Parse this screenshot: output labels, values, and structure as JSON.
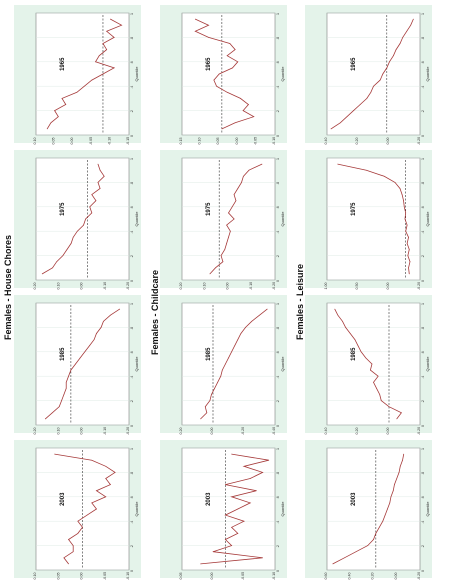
{
  "sections": [
    {
      "title": "Females - House Chores"
    },
    {
      "title": "Females - Childcare"
    },
    {
      "title": "Females - Leisure"
    }
  ],
  "colors": {
    "panel_bg": "#e4f3ea",
    "plot_bg": "#ffffff",
    "line": "#a63a3a",
    "ref_line": "#333333",
    "grid": "#d8e6de"
  },
  "chart_data": [
    {
      "type": "line",
      "row": 0,
      "col": 0,
      "title": "1965",
      "xlabel": "Quantile",
      "ylabel": "",
      "ylim": [
        -0.15,
        0.1
      ],
      "yticks": [
        "0.10",
        "0.05",
        "0.00",
        "-0.05",
        "-0.10",
        "-0.15"
      ],
      "xticks": [
        "0",
        ".2",
        ".4",
        ".6",
        ".8",
        "1"
      ],
      "ref": -0.08,
      "x": [
        0.05,
        0.1,
        0.15,
        0.2,
        0.25,
        0.3,
        0.35,
        0.4,
        0.45,
        0.5,
        0.55,
        0.6,
        0.65,
        0.7,
        0.75,
        0.8,
        0.85,
        0.9,
        0.95
      ],
      "values": [
        0.07,
        0.06,
        0.04,
        0.05,
        0.02,
        0.03,
        -0.01,
        -0.03,
        -0.05,
        -0.08,
        -0.11,
        -0.06,
        -0.07,
        -0.09,
        -0.08,
        -0.11,
        -0.09,
        -0.13,
        -0.1
      ]
    },
    {
      "type": "line",
      "row": 0,
      "col": 1,
      "title": "1975",
      "xlabel": "Quantile",
      "ylabel": "",
      "ylim": [
        -0.2,
        0.25
      ],
      "yticks": [
        "0.20",
        "0.10",
        "0.00",
        "-0.10",
        "-0.20"
      ],
      "xticks": [
        "0",
        ".2",
        ".4",
        ".6",
        ".8",
        "1"
      ],
      "ref": 0.0,
      "x": [
        0.05,
        0.1,
        0.15,
        0.2,
        0.25,
        0.3,
        0.35,
        0.4,
        0.45,
        0.5,
        0.55,
        0.6,
        0.65,
        0.7,
        0.75,
        0.8,
        0.85,
        0.9,
        0.95
      ],
      "values": [
        0.22,
        0.17,
        0.15,
        0.12,
        0.1,
        0.08,
        0.07,
        0.05,
        0.02,
        0.01,
        -0.02,
        -0.01,
        -0.04,
        -0.02,
        -0.06,
        -0.05,
        -0.08,
        -0.06,
        -0.05
      ]
    },
    {
      "type": "line",
      "row": 0,
      "col": 2,
      "title": "1985",
      "xlabel": "Quantile",
      "ylabel": "",
      "ylim": [
        -0.2,
        0.2
      ],
      "yticks": [
        "0.20",
        "0.10",
        "0.00",
        "-0.10",
        "-0.20"
      ],
      "xticks": [
        "0",
        ".2",
        ".4",
        ".6",
        ".8",
        "1"
      ],
      "ref": 0.05,
      "x": [
        0.05,
        0.1,
        0.15,
        0.2,
        0.25,
        0.3,
        0.35,
        0.4,
        0.45,
        0.5,
        0.55,
        0.6,
        0.65,
        0.7,
        0.75,
        0.8,
        0.85,
        0.9,
        0.95
      ],
      "values": [
        0.16,
        0.13,
        0.1,
        0.09,
        0.08,
        0.07,
        0.07,
        0.06,
        0.05,
        0.03,
        0.01,
        -0.01,
        -0.03,
        -0.05,
        -0.06,
        -0.08,
        -0.09,
        -0.12,
        -0.16
      ]
    },
    {
      "type": "line",
      "row": 0,
      "col": 3,
      "title": "2003",
      "xlabel": "Quantile",
      "ylabel": "",
      "ylim": [
        -0.1,
        0.1
      ],
      "yticks": [
        "0.10",
        "0.05",
        "0.00",
        "-0.05",
        "-0.10"
      ],
      "xticks": [
        "0",
        ".2",
        ".4",
        ".6",
        ".8",
        "1"
      ],
      "ref": -0.0,
      "x": [
        0.05,
        0.1,
        0.15,
        0.2,
        0.25,
        0.3,
        0.35,
        0.4,
        0.45,
        0.5,
        0.55,
        0.6,
        0.65,
        0.7,
        0.75,
        0.8,
        0.85,
        0.9,
        0.95
      ],
      "values": [
        0.03,
        0.04,
        0.02,
        0.02,
        0.03,
        0.01,
        0.0,
        0.01,
        -0.01,
        -0.03,
        -0.02,
        -0.05,
        -0.03,
        -0.06,
        -0.05,
        -0.07,
        -0.05,
        -0.02,
        0.06
      ]
    },
    {
      "type": "line",
      "row": 1,
      "col": 0,
      "title": "1965",
      "xlabel": "Quantile",
      "ylabel": "",
      "ylim": [
        -0.2,
        0.15
      ],
      "yticks": [
        "0.15",
        "0.10",
        "0.05",
        "0.00",
        "-0.05",
        "-0.10"
      ],
      "xticks": [
        "0",
        ".2",
        ".4",
        ".6",
        ".8",
        "1"
      ],
      "ref": 0.0,
      "x": [
        0.05,
        0.1,
        0.15,
        0.2,
        0.25,
        0.3,
        0.35,
        0.4,
        0.45,
        0.5,
        0.55,
        0.6,
        0.65,
        0.7,
        0.75,
        0.8,
        0.85,
        0.9,
        0.95
      ],
      "values": [
        0.0,
        -0.05,
        -0.12,
        -0.08,
        -0.1,
        -0.07,
        -0.02,
        0.02,
        0.03,
        0.01,
        -0.04,
        -0.06,
        -0.02,
        -0.05,
        -0.03,
        0.05,
        0.1,
        0.05,
        0.1
      ]
    },
    {
      "type": "line",
      "row": 1,
      "col": 1,
      "title": "1975",
      "xlabel": "Quantile",
      "ylabel": "",
      "ylim": [
        -0.3,
        0.2
      ],
      "yticks": [
        "0.20",
        "0.10",
        "0.00",
        "-0.10",
        "-0.20"
      ],
      "xticks": [
        "0",
        ".2",
        ".4",
        ".6",
        ".8",
        "1"
      ],
      "ref": 0.0,
      "x": [
        0.05,
        0.1,
        0.15,
        0.2,
        0.25,
        0.3,
        0.35,
        0.4,
        0.45,
        0.5,
        0.55,
        0.6,
        0.65,
        0.7,
        0.75,
        0.8,
        0.85,
        0.9,
        0.95
      ],
      "values": [
        0.05,
        0.02,
        -0.02,
        -0.01,
        -0.03,
        -0.04,
        -0.05,
        -0.06,
        -0.04,
        -0.08,
        -0.05,
        -0.07,
        -0.09,
        -0.08,
        -0.1,
        -0.12,
        -0.13,
        -0.16,
        -0.23
      ]
    },
    {
      "type": "line",
      "row": 1,
      "col": 2,
      "title": "1985",
      "xlabel": "Quantile",
      "ylabel": "",
      "ylim": [
        -0.4,
        0.2
      ],
      "yticks": [
        "0.20",
        "0.00",
        "-0.20",
        "-0.40"
      ],
      "xticks": [
        "0",
        ".2",
        ".4",
        ".6",
        ".8",
        "1"
      ],
      "ref": 0.0,
      "x": [
        0.05,
        0.1,
        0.15,
        0.2,
        0.25,
        0.3,
        0.35,
        0.4,
        0.45,
        0.5,
        0.55,
        0.6,
        0.65,
        0.7,
        0.75,
        0.8,
        0.85,
        0.9,
        0.95
      ],
      "values": [
        0.08,
        0.04,
        0.05,
        0.02,
        0.01,
        -0.01,
        -0.03,
        -0.05,
        -0.06,
        -0.08,
        -0.1,
        -0.12,
        -0.14,
        -0.16,
        -0.18,
        -0.21,
        -0.25,
        -0.3,
        -0.35
      ]
    },
    {
      "type": "line",
      "row": 1,
      "col": 3,
      "title": "2003",
      "xlabel": "Quantile",
      "ylabel": "",
      "ylim": [
        -0.1,
        0.05
      ],
      "yticks": [
        "0.05",
        "0.00",
        "-0.05",
        "-0.10"
      ],
      "xticks": [
        "0",
        ".2",
        ".4",
        ".6",
        ".8",
        "1"
      ],
      "ref": -0.02,
      "x": [
        0.05,
        0.1,
        0.15,
        0.2,
        0.25,
        0.3,
        0.35,
        0.4,
        0.45,
        0.5,
        0.55,
        0.6,
        0.65,
        0.7,
        0.75,
        0.8,
        0.85,
        0.9,
        0.95
      ],
      "values": [
        0.02,
        -0.08,
        0.0,
        -0.03,
        -0.02,
        -0.04,
        -0.03,
        -0.05,
        -0.02,
        -0.04,
        -0.06,
        -0.03,
        -0.07,
        -0.02,
        -0.06,
        -0.08,
        -0.05,
        -0.09,
        -0.03
      ]
    },
    {
      "type": "line",
      "row": 2,
      "col": 0,
      "title": "1965",
      "xlabel": "Quantile",
      "ylabel": "",
      "ylim": [
        -0.25,
        0.45
      ],
      "yticks": [
        "0.40",
        "0.20",
        "0.00",
        "-0.20"
      ],
      "xticks": [
        "0",
        ".2",
        ".4",
        ".6",
        ".8",
        "1"
      ],
      "ref": 0.0,
      "x": [
        0.05,
        0.1,
        0.15,
        0.2,
        0.25,
        0.3,
        0.35,
        0.4,
        0.45,
        0.5,
        0.55,
        0.6,
        0.65,
        0.7,
        0.75,
        0.8,
        0.85,
        0.9,
        0.95
      ],
      "values": [
        0.42,
        0.35,
        0.3,
        0.25,
        0.2,
        0.15,
        0.12,
        0.1,
        0.05,
        0.03,
        0.0,
        -0.02,
        -0.05,
        -0.07,
        -0.1,
        -0.12,
        -0.15,
        -0.18,
        -0.2
      ]
    },
    {
      "type": "line",
      "row": 2,
      "col": 1,
      "title": "1975",
      "xlabel": "Quantile",
      "ylabel": "",
      "ylim": [
        -0.3,
        1.0
      ],
      "yticks": [
        "1.00",
        "0.50",
        "0.00",
        "-0.20"
      ],
      "xticks": [
        "0",
        ".2",
        ".4",
        ".6",
        ".8",
        "1"
      ],
      "ref": -0.1,
      "x": [
        0.05,
        0.1,
        0.15,
        0.2,
        0.25,
        0.3,
        0.35,
        0.4,
        0.45,
        0.5,
        0.55,
        0.6,
        0.65,
        0.7,
        0.75,
        0.8,
        0.85,
        0.9,
        0.95
      ],
      "values": [
        -0.15,
        -0.14,
        -0.16,
        -0.13,
        -0.15,
        -0.12,
        -0.14,
        -0.1,
        -0.12,
        -0.09,
        -0.1,
        -0.08,
        -0.07,
        -0.05,
        -0.02,
        0.05,
        0.2,
        0.45,
        0.85
      ]
    },
    {
      "type": "line",
      "row": 2,
      "col": 2,
      "title": "1985",
      "xlabel": "Quantile",
      "ylabel": "",
      "ylim": [
        -0.2,
        0.4
      ],
      "yticks": [
        "0.40",
        "0.20",
        "0.00",
        "-0.20"
      ],
      "xticks": [
        "0",
        ".2",
        ".4",
        ".6",
        ".8",
        "1"
      ],
      "ref": 0.0,
      "x": [
        0.05,
        0.1,
        0.15,
        0.2,
        0.25,
        0.3,
        0.35,
        0.4,
        0.45,
        0.5,
        0.55,
        0.6,
        0.65,
        0.7,
        0.75,
        0.8,
        0.85,
        0.9,
        0.95
      ],
      "values": [
        -0.05,
        -0.08,
        0.0,
        0.05,
        0.06,
        0.08,
        0.1,
        0.07,
        0.12,
        0.11,
        0.15,
        0.18,
        0.2,
        0.22,
        0.25,
        0.28,
        0.3,
        0.33,
        0.35
      ]
    },
    {
      "type": "line",
      "row": 2,
      "col": 3,
      "title": "2003",
      "xlabel": "Quantile",
      "ylabel": "",
      "ylim": [
        -0.2,
        0.6
      ],
      "yticks": [
        "0.60",
        "0.40",
        "0.20",
        "0.00",
        "-0.20"
      ],
      "xticks": [
        "0",
        ".2",
        ".4",
        ".6",
        ".8",
        "1"
      ],
      "ref": 0.18,
      "x": [
        0.05,
        0.1,
        0.15,
        0.2,
        0.25,
        0.3,
        0.35,
        0.4,
        0.45,
        0.5,
        0.55,
        0.6,
        0.65,
        0.7,
        0.75,
        0.8,
        0.85,
        0.9,
        0.95
      ],
      "values": [
        0.55,
        0.45,
        0.35,
        0.25,
        0.2,
        0.18,
        0.15,
        0.12,
        0.1,
        0.08,
        0.06,
        0.05,
        0.03,
        0.02,
        0.0,
        -0.02,
        -0.03,
        -0.05,
        -0.06
      ]
    }
  ]
}
